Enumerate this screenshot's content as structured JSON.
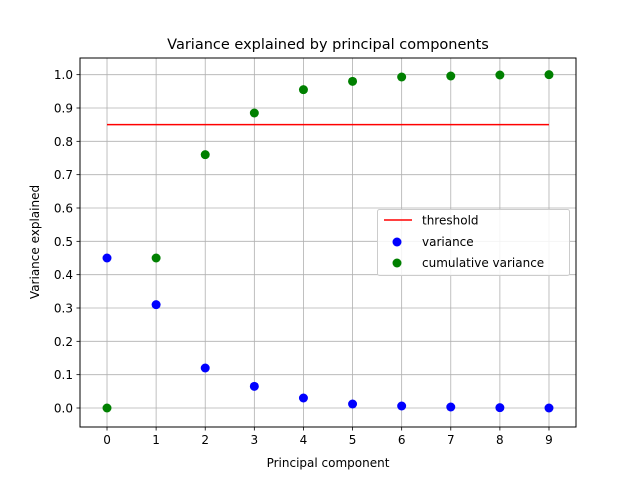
{
  "chart_data": {
    "type": "scatter",
    "title": "Variance explained by principal components",
    "xlabel": "Principal component",
    "ylabel": "Variance explained",
    "xlim": [
      -0.55,
      9.55
    ],
    "ylim": [
      -0.057,
      1.05
    ],
    "x": [
      0,
      1,
      2,
      3,
      4,
      5,
      6,
      7,
      8,
      9
    ],
    "xticks": [
      0,
      1,
      2,
      3,
      4,
      5,
      6,
      7,
      8,
      9
    ],
    "yticks": [
      0.0,
      0.1,
      0.2,
      0.3,
      0.4,
      0.5,
      0.6,
      0.7,
      0.8,
      0.9,
      1.0
    ],
    "grid": true,
    "legend_position": "center-right",
    "threshold": {
      "name": "threshold",
      "value": 0.85,
      "x_range": [
        0,
        9
      ],
      "color": "#ff0000"
    },
    "series": [
      {
        "name": "variance",
        "color": "#0000ff",
        "values": [
          0.45,
          0.31,
          0.12,
          0.065,
          0.03,
          0.012,
          0.006,
          0.003,
          0.001,
          0.0
        ]
      },
      {
        "name": "cumulative variance",
        "color": "#008000",
        "values": [
          0.0,
          0.45,
          0.76,
          0.885,
          0.955,
          0.98,
          0.993,
          0.996,
          0.999,
          1.0
        ]
      }
    ]
  }
}
